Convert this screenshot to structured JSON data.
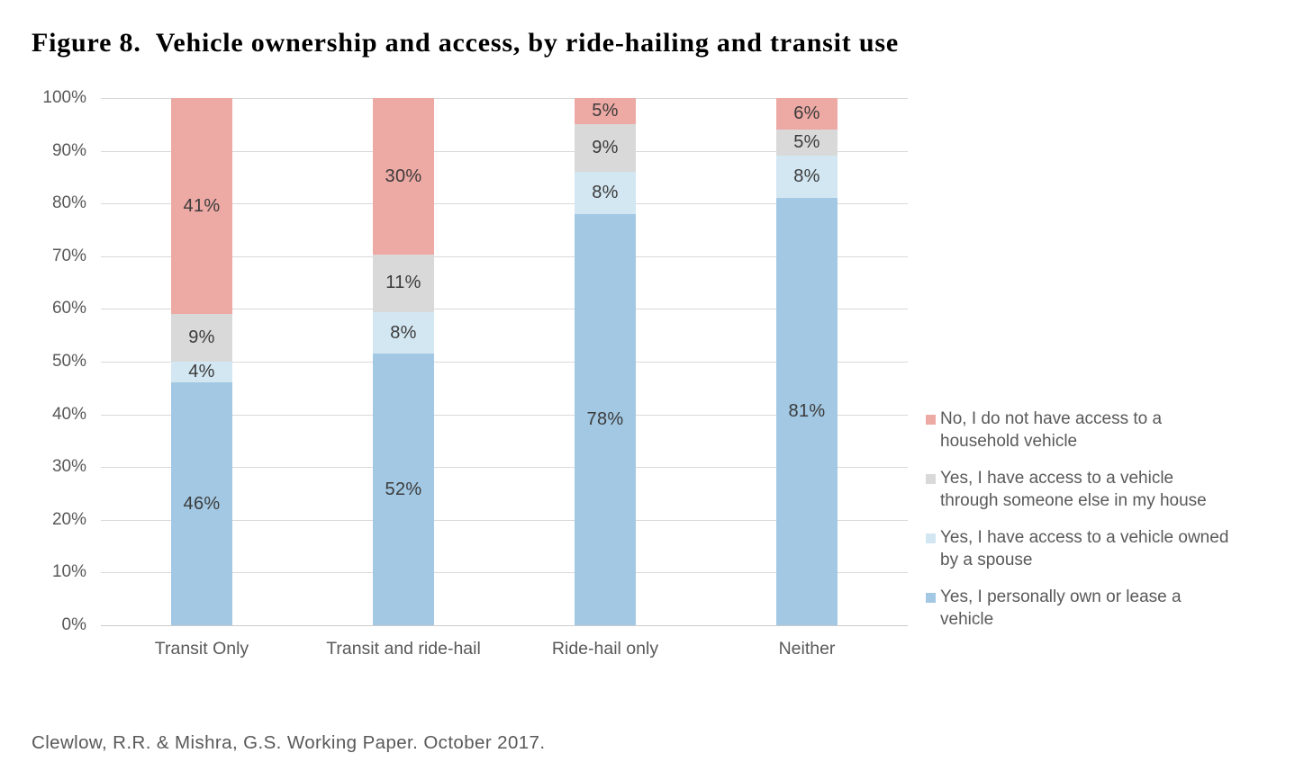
{
  "title": "Figure 8.  Vehicle ownership and access, by ride-hailing and transit use",
  "caption": "Clewlow, R.R. & Mishra, G.S. Working Paper. October 2017.",
  "colors": {
    "own_lease_blue": "#A2C8E3",
    "spouse_light_blue": "#D3E7F2",
    "someone_else_gray": "#D9D9D9",
    "no_access_pink": "#EDA9A4",
    "gridline": "#D9D9D9",
    "axis_text": "#595959",
    "data_label_text": "#3B3B3B",
    "title_text": "#000000"
  },
  "chart_data": {
    "type": "bar",
    "stacked": true,
    "title": "Figure 8.  Vehicle ownership and access, by ride-hailing and transit use",
    "xlabel": "",
    "ylabel": "",
    "ylim": [
      0,
      100
    ],
    "grid": true,
    "legend_position": "right",
    "data_labels": "percent",
    "y_ticks": [
      "0%",
      "10%",
      "20%",
      "30%",
      "40%",
      "50%",
      "60%",
      "70%",
      "80%",
      "90%",
      "100%"
    ],
    "categories": [
      "Transit Only",
      "Transit and ride-hail",
      "Ride-hail only",
      "Neither"
    ],
    "series": [
      {
        "key": "own-or-lease",
        "name": "Yes, I personally own or lease a vehicle",
        "color": "#A2C8E3",
        "values": [
          46,
          52,
          78,
          81
        ]
      },
      {
        "key": "spouse",
        "name": "Yes, I have access to a vehicle owned by a spouse",
        "color": "#D3E7F2",
        "values": [
          4,
          8,
          8,
          8
        ]
      },
      {
        "key": "someone-else",
        "name": "Yes, I have access to a vehicle through someone else in my house",
        "color": "#D9D9D9",
        "values": [
          9,
          11,
          9,
          5
        ]
      },
      {
        "key": "no-access",
        "name": "No, I do not have access to a household vehicle",
        "color": "#EDA9A4",
        "values": [
          41,
          30,
          5,
          6
        ]
      }
    ]
  },
  "legend": {
    "items": [
      {
        "key": "no-access",
        "color": "#EDA9A4",
        "lines": [
          "No, I do not have access to a",
          "household vehicle"
        ]
      },
      {
        "key": "someone-else",
        "color": "#D9D9D9",
        "lines": [
          "Yes, I have access to a vehicle",
          "through someone else in my house"
        ]
      },
      {
        "key": "spouse",
        "color": "#D3E7F2",
        "lines": [
          "Yes, I have access to a vehicle owned",
          "by a spouse"
        ]
      },
      {
        "key": "own-or-lease",
        "color": "#A2C8E3",
        "lines": [
          "Yes, I personally own or lease a",
          "vehicle"
        ]
      }
    ]
  }
}
